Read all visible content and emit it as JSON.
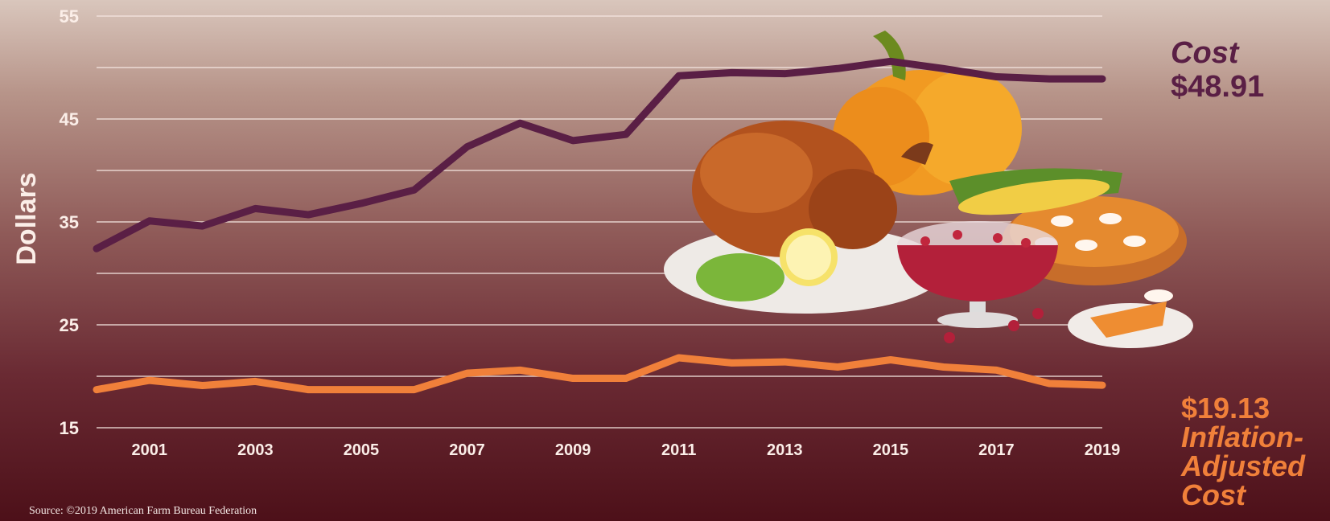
{
  "chart_data": {
    "type": "line",
    "x": [
      2000,
      2001,
      2002,
      2003,
      2004,
      2005,
      2006,
      2007,
      2008,
      2009,
      2010,
      2011,
      2012,
      2013,
      2014,
      2015,
      2016,
      2017,
      2018,
      2019
    ],
    "xticks": [
      2001,
      2003,
      2005,
      2007,
      2009,
      2011,
      2013,
      2015,
      2017,
      2019
    ],
    "ylabel": "Dollars",
    "yticks": [
      15,
      25,
      35,
      45,
      55
    ],
    "ylim": [
      15,
      55
    ],
    "grid": true,
    "series": [
      {
        "name": "Cost",
        "color": "#5a1f45",
        "values": [
          32.4,
          35.1,
          34.6,
          36.3,
          35.7,
          36.8,
          38.1,
          42.3,
          44.6,
          42.9,
          43.5,
          49.2,
          49.5,
          49.4,
          49.9,
          50.6,
          49.9,
          49.1,
          48.9,
          48.9
        ]
      },
      {
        "name": "Inflation-Adjusted Cost",
        "color": "#f0803a",
        "values": [
          18.7,
          19.6,
          19.1,
          19.5,
          18.7,
          18.7,
          18.7,
          20.3,
          20.6,
          19.8,
          19.8,
          21.8,
          21.3,
          21.4,
          20.9,
          21.6,
          20.9,
          20.6,
          19.3,
          19.13
        ]
      }
    ]
  },
  "annotations": {
    "cost_label": "Cost",
    "cost_value": "$48.91",
    "inflation_value": "$19.13",
    "inflation_label_1": "Inflation-",
    "inflation_label_2": "Adjusted",
    "inflation_label_3": "Cost"
  },
  "source": "Source: ©2019 American Farm Bureau Federation"
}
